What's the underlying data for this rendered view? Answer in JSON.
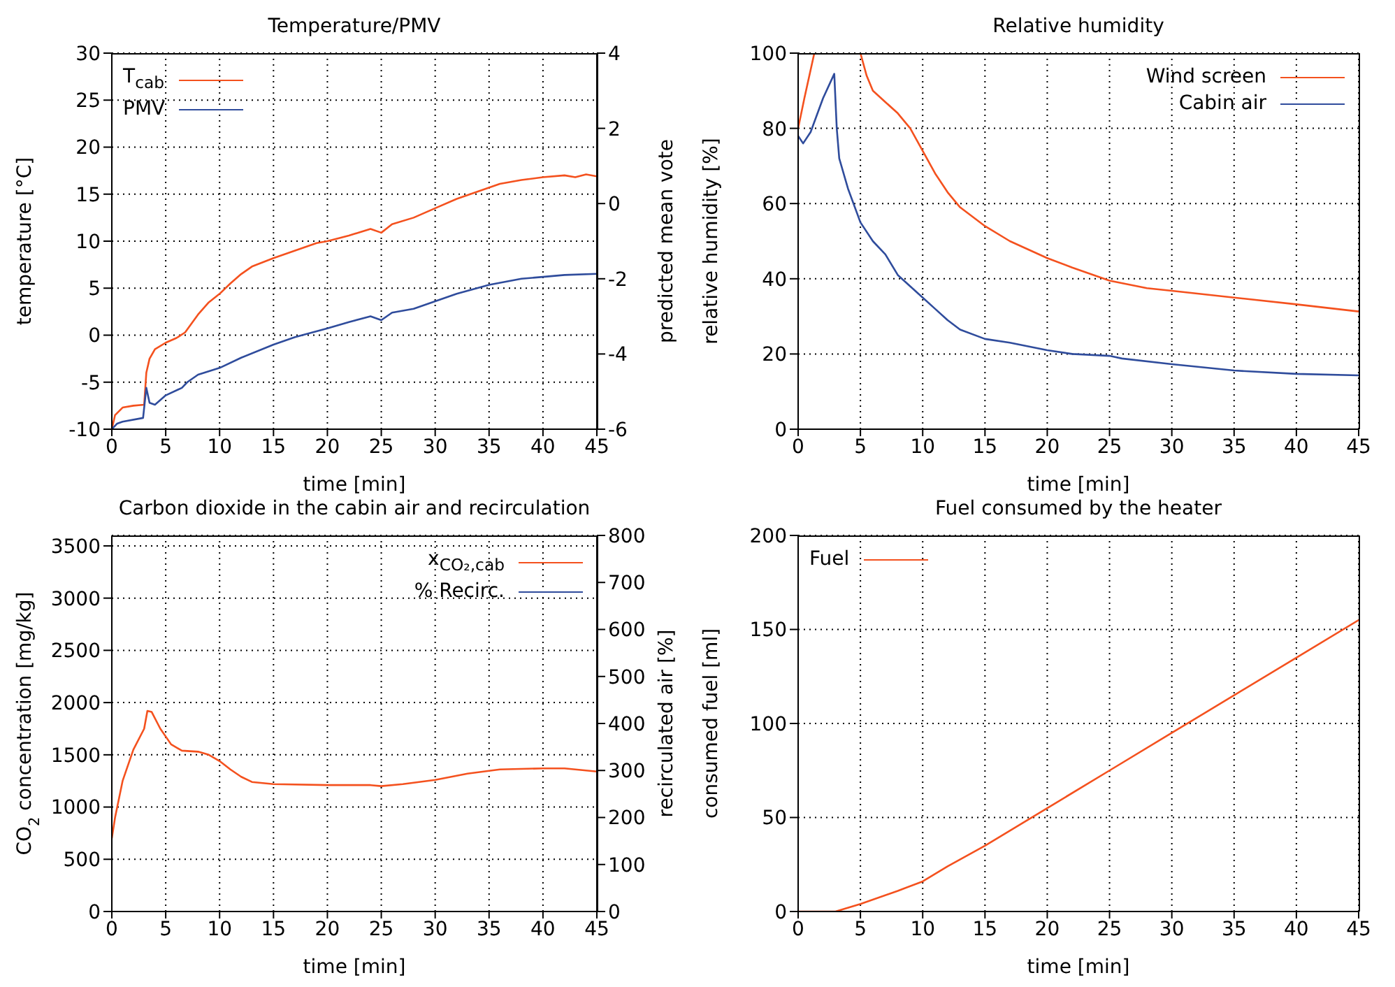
{
  "chart_data": [
    {
      "type": "line",
      "title": "Temperature/PMV",
      "xlabel": "time [min]",
      "ylabel": "temperature [°C]",
      "y2label": "predicted mean vote",
      "xlim": [
        0,
        45
      ],
      "xticks": [
        0,
        5,
        10,
        15,
        20,
        25,
        30,
        35,
        40,
        45
      ],
      "ylim": [
        -10,
        30
      ],
      "yticks": [
        -10,
        -5,
        0,
        5,
        10,
        15,
        20,
        25,
        30
      ],
      "y2lim": [
        -6,
        4
      ],
      "y2ticks": [
        -6,
        -4,
        -2,
        0,
        2,
        4
      ],
      "grid": true,
      "legend": "top left",
      "series": [
        {
          "name": "T$_{cab}$",
          "color": "#f4511e",
          "x": [
            0,
            0.3,
            1,
            2,
            3,
            3.2,
            3.5,
            4,
            5,
            6,
            6.8,
            8,
            9,
            10,
            11,
            12,
            13,
            15,
            17,
            19,
            20,
            22,
            24,
            25,
            26,
            28,
            30,
            32,
            34,
            36,
            38,
            40,
            42,
            43,
            44,
            45
          ],
          "values": [
            -10,
            -8.5,
            -7.7,
            -7.5,
            -7.4,
            -4,
            -2.5,
            -1.5,
            -0.8,
            -0.3,
            0.3,
            2.2,
            3.5,
            4.4,
            5.5,
            6.5,
            7.3,
            8.2,
            9,
            9.8,
            10,
            10.6,
            11.3,
            10.9,
            11.8,
            12.5,
            13.5,
            14.5,
            15.3,
            16.1,
            16.5,
            16.8,
            17,
            16.8,
            17.1,
            16.9
          ]
        },
        {
          "name": "PMV",
          "color": "#2f4c9c",
          "axis": "y2",
          "x": [
            0,
            0.5,
            1,
            2.9,
            3.2,
            3.5,
            4,
            5,
            6.5,
            7,
            8,
            10,
            12,
            15,
            17,
            20,
            22,
            24,
            25,
            26,
            28,
            30,
            32,
            35,
            38,
            40,
            42,
            45
          ],
          "values": [
            -6,
            -5.85,
            -5.8,
            -5.7,
            -4.9,
            -5.3,
            -5.35,
            -5.1,
            -4.9,
            -4.75,
            -4.55,
            -4.37,
            -4.1,
            -3.75,
            -3.55,
            -3.32,
            -3.15,
            -3.0,
            -3.1,
            -2.9,
            -2.8,
            -2.6,
            -2.4,
            -2.16,
            -2.0,
            -1.95,
            -1.9,
            -1.87
          ]
        }
      ]
    },
    {
      "type": "line",
      "title": "Relative humidity",
      "xlabel": "time [min]",
      "ylabel": "relative humidity [%]",
      "xlim": [
        0,
        45
      ],
      "xticks": [
        0,
        5,
        10,
        15,
        20,
        25,
        30,
        35,
        40,
        45
      ],
      "ylim": [
        0,
        100
      ],
      "yticks": [
        0,
        20,
        40,
        60,
        80,
        100
      ],
      "grid": true,
      "legend": "top right",
      "series": [
        {
          "name": "Wind screen",
          "color": "#f4511e",
          "x": [
            0,
            0.5,
            1.3,
            5,
            5.5,
            6,
            7,
            8,
            9,
            10,
            11,
            12,
            13,
            15,
            17,
            20,
            22,
            25,
            28,
            30,
            35,
            40,
            45
          ],
          "values": [
            80,
            88,
            100,
            100,
            94,
            90,
            87,
            84,
            80,
            74,
            68,
            63,
            59,
            54,
            50,
            45.5,
            43,
            39.5,
            37.5,
            36.8,
            35,
            33.2,
            31.3
          ]
        },
        {
          "name": "Cabin air",
          "color": "#2f4c9c",
          "x": [
            0,
            0.4,
            1,
            2,
            2.9,
            3.1,
            3.3,
            4,
            5,
            6,
            7,
            8,
            10,
            11,
            12,
            13,
            15,
            17,
            20,
            22,
            25,
            26,
            30,
            35,
            40,
            45
          ],
          "values": [
            78,
            76,
            79,
            88,
            94.5,
            80,
            72,
            64,
            55,
            50,
            46.5,
            41,
            35,
            32,
            29,
            26.5,
            24,
            23,
            21,
            20,
            19.5,
            18.8,
            17.3,
            15.6,
            14.7,
            14.3
          ]
        }
      ]
    },
    {
      "type": "line",
      "title": "Carbon dioxide in the cabin air and recirculation",
      "xlabel": "time [min]",
      "ylabel": "CO$_{2}$ concentration [mg/kg]",
      "y2label": "recirculated air [%]",
      "xlim": [
        0,
        45
      ],
      "xticks": [
        0,
        5,
        10,
        15,
        20,
        25,
        30,
        35,
        40,
        45
      ],
      "ylim": [
        0,
        3600
      ],
      "yticks": [
        0,
        500,
        1000,
        1500,
        2000,
        2500,
        3000,
        3500
      ],
      "y2lim": [
        0,
        800
      ],
      "y2ticks": [
        0,
        100,
        200,
        300,
        400,
        500,
        600,
        700,
        800
      ],
      "grid": true,
      "legend": "top right",
      "series": [
        {
          "name": "x$_{CO₂,cab}$",
          "color": "#f4511e",
          "x": [
            0,
            0.3,
            1,
            2,
            3,
            3.3,
            3.7,
            4.5,
            5.5,
            6.5,
            8,
            9,
            10,
            11,
            12,
            13,
            15,
            20,
            24,
            25,
            27,
            30,
            33,
            36,
            40,
            42,
            45
          ],
          "values": [
            700,
            900,
            1250,
            1550,
            1750,
            1920,
            1910,
            1750,
            1600,
            1540,
            1530,
            1500,
            1440,
            1360,
            1290,
            1240,
            1220,
            1210,
            1210,
            1200,
            1220,
            1260,
            1320,
            1360,
            1370,
            1370,
            1340
          ]
        },
        {
          "name": "% Recirc.",
          "color": "#2f4c9c",
          "axis": "y2"
        }
      ]
    },
    {
      "type": "line",
      "title": "Fuel consumed by the heater",
      "xlabel": "time [min]",
      "ylabel": "consumed fuel [ml]",
      "xlim": [
        0,
        45
      ],
      "xticks": [
        0,
        5,
        10,
        15,
        20,
        25,
        30,
        35,
        40,
        45
      ],
      "ylim": [
        0,
        200
      ],
      "yticks": [
        0,
        50,
        100,
        150,
        200
      ],
      "grid": true,
      "legend": "top left",
      "series": [
        {
          "name": "Fuel",
          "color": "#f4511e",
          "x": [
            0,
            3,
            5,
            8,
            10,
            12,
            15,
            20,
            25,
            30,
            35,
            40,
            45
          ],
          "values": [
            0,
            0,
            4,
            11,
            16,
            24,
            35,
            55,
            75,
            95,
            115,
            135,
            155
          ]
        }
      ]
    }
  ]
}
